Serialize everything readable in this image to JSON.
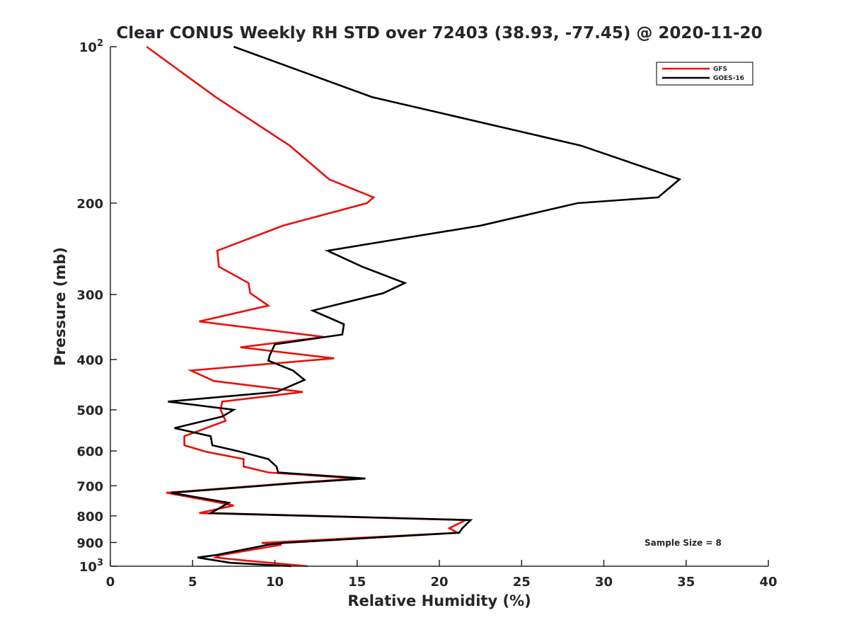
{
  "chart_data": {
    "type": "line",
    "title": "Clear CONUS Weekly RH STD over 72403 (38.93, -77.45) @ 2020-11-20",
    "xlabel": "Relative Humidity (%)",
    "ylabel": "Pressure (mb)",
    "xlim": [
      0,
      40
    ],
    "ylim": [
      100,
      1000
    ],
    "y_scale": "log",
    "y_reversed": true,
    "x_ticks": [
      0,
      5,
      10,
      15,
      20,
      25,
      30,
      35,
      40
    ],
    "x_tick_labels": [
      "0",
      "5",
      "10",
      "15",
      "20",
      "25",
      "30",
      "35",
      "40"
    ],
    "y_ticks": [
      100,
      200,
      300,
      400,
      500,
      600,
      700,
      800,
      900,
      1000
    ],
    "y_tick_labels": [
      {
        "base": "10",
        "exp": "2"
      },
      {
        "base": "200",
        "exp": ""
      },
      {
        "base": "300",
        "exp": ""
      },
      {
        "base": "400",
        "exp": ""
      },
      {
        "base": "500",
        "exp": ""
      },
      {
        "base": "600",
        "exp": ""
      },
      {
        "base": "700",
        "exp": ""
      },
      {
        "base": "800",
        "exp": ""
      },
      {
        "base": "900",
        "exp": ""
      },
      {
        "base": "10",
        "exp": "3"
      }
    ],
    "grid": false,
    "legend_position": "top-right",
    "annotation": "Sample Size = 8",
    "series": [
      {
        "name": "GFS",
        "color": "#e8120c",
        "points": [
          [
            2.2,
            100
          ],
          [
            6.4,
            125
          ],
          [
            10.9,
            155
          ],
          [
            13.3,
            180
          ],
          [
            16.0,
            195
          ],
          [
            15.6,
            200
          ],
          [
            10.5,
            221
          ],
          [
            6.5,
            247
          ],
          [
            6.6,
            265
          ],
          [
            8.4,
            285
          ],
          [
            8.5,
            298
          ],
          [
            9.6,
            315
          ],
          [
            5.4,
            338
          ],
          [
            13.0,
            362
          ],
          [
            7.9,
            379
          ],
          [
            13.6,
            398
          ],
          [
            4.9,
            420
          ],
          [
            6.3,
            440
          ],
          [
            11.7,
            462
          ],
          [
            6.8,
            482
          ],
          [
            6.7,
            500
          ],
          [
            7.0,
            525
          ],
          [
            4.5,
            562
          ],
          [
            4.5,
            585
          ],
          [
            5.8,
            602
          ],
          [
            8.1,
            622
          ],
          [
            8.1,
            643
          ],
          [
            9.6,
            660
          ],
          [
            15.0,
            678
          ],
          [
            11.0,
            692
          ],
          [
            3.4,
            722
          ],
          [
            6.4,
            752
          ],
          [
            7.5,
            764
          ],
          [
            5.4,
            790
          ],
          [
            21.6,
            815
          ],
          [
            20.6,
            845
          ],
          [
            21.1,
            862
          ],
          [
            9.2,
            902
          ],
          [
            10.4,
            909
          ],
          [
            6.7,
            952
          ],
          [
            6.4,
            962
          ],
          [
            8.2,
            975
          ],
          [
            12.0,
            1000
          ]
        ]
      },
      {
        "name": "GOES-16",
        "color": "#000000",
        "points": [
          [
            7.5,
            100
          ],
          [
            15.9,
            125
          ],
          [
            28.6,
            155
          ],
          [
            34.6,
            180
          ],
          [
            33.3,
            195
          ],
          [
            28.4,
            200
          ],
          [
            22.5,
            221
          ],
          [
            13.2,
            247
          ],
          [
            15.3,
            265
          ],
          [
            17.9,
            285
          ],
          [
            16.6,
            298
          ],
          [
            12.3,
            322
          ],
          [
            14.2,
            342
          ],
          [
            14.1,
            358
          ],
          [
            10.0,
            374
          ],
          [
            9.7,
            392
          ],
          [
            9.6,
            402
          ],
          [
            11.1,
            420
          ],
          [
            11.8,
            438
          ],
          [
            10.1,
            462
          ],
          [
            3.5,
            482
          ],
          [
            7.5,
            500
          ],
          [
            6.8,
            515
          ],
          [
            3.9,
            542
          ],
          [
            6.1,
            562
          ],
          [
            6.2,
            585
          ],
          [
            7.9,
            602
          ],
          [
            9.6,
            622
          ],
          [
            10.1,
            643
          ],
          [
            10.2,
            660
          ],
          [
            15.5,
            678
          ],
          [
            11.3,
            692
          ],
          [
            3.7,
            722
          ],
          [
            7.2,
            755
          ],
          [
            6.1,
            790
          ],
          [
            21.9,
            815
          ],
          [
            21.4,
            845
          ],
          [
            21.2,
            862
          ],
          [
            10.5,
            902
          ],
          [
            9.6,
            909
          ],
          [
            6.4,
            952
          ],
          [
            5.3,
            962
          ],
          [
            7.3,
            985
          ],
          [
            11.0,
            1000
          ]
        ]
      }
    ]
  }
}
